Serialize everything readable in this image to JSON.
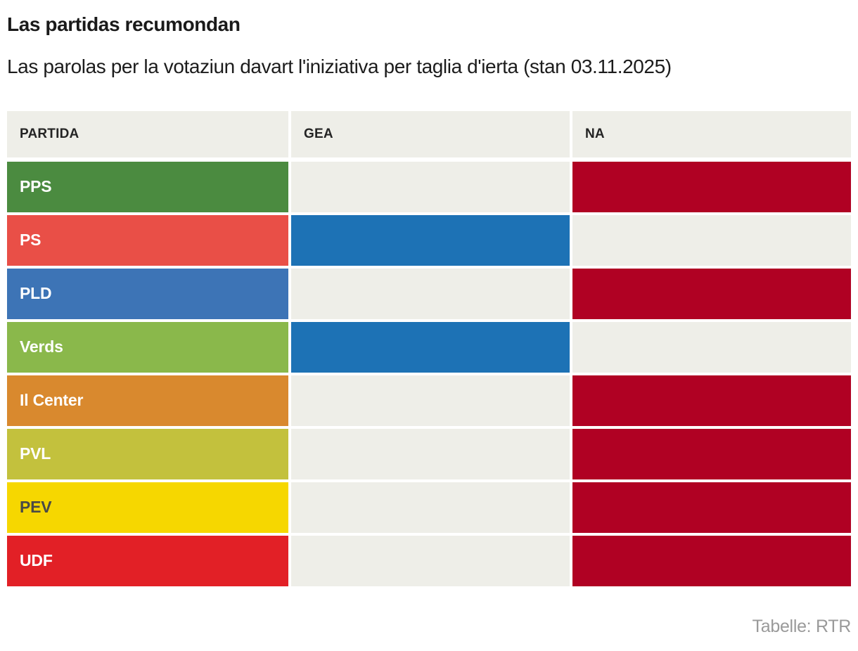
{
  "chart_data": {
    "type": "table",
    "title": "Las partidas recumondan",
    "subtitle": "Las parolas per la votaziun davart l'iniziativa per taglia d'ierta (stan 03.11.2025)",
    "source": "Tabelle: RTR",
    "columns": [
      "PARTIDA",
      "GEA",
      "NA"
    ],
    "rows": [
      {
        "party": "PPS",
        "recommendation": "NA",
        "party_color": "#4b8b40",
        "label_color": "#ffffff"
      },
      {
        "party": "PS",
        "recommendation": "GEA",
        "party_color": "#e94f47",
        "label_color": "#ffffff"
      },
      {
        "party": "PLD",
        "recommendation": "NA",
        "party_color": "#3d74b6",
        "label_color": "#ffffff"
      },
      {
        "party": "Verds",
        "recommendation": "GEA",
        "party_color": "#8ab84b",
        "label_color": "#ffffff"
      },
      {
        "party": "Il Center",
        "recommendation": "NA",
        "party_color": "#d9892e",
        "label_color": "#ffffff"
      },
      {
        "party": "PVL",
        "recommendation": "NA",
        "party_color": "#c3c13d",
        "label_color": "#ffffff"
      },
      {
        "party": "PEV",
        "recommendation": "NA",
        "party_color": "#f6d700",
        "label_color": "#4a4a46"
      },
      {
        "party": "UDF",
        "recommendation": "NA",
        "party_color": "#e22026",
        "label_color": "#ffffff"
      }
    ],
    "cell_colors": {
      "gea_fill": "#1d72b5",
      "na_fill": "#b00123",
      "empty": "#eeeee8",
      "header_bg": "#eeeee8"
    },
    "layout_hints": {
      "legend": "none",
      "grid": "off"
    }
  }
}
